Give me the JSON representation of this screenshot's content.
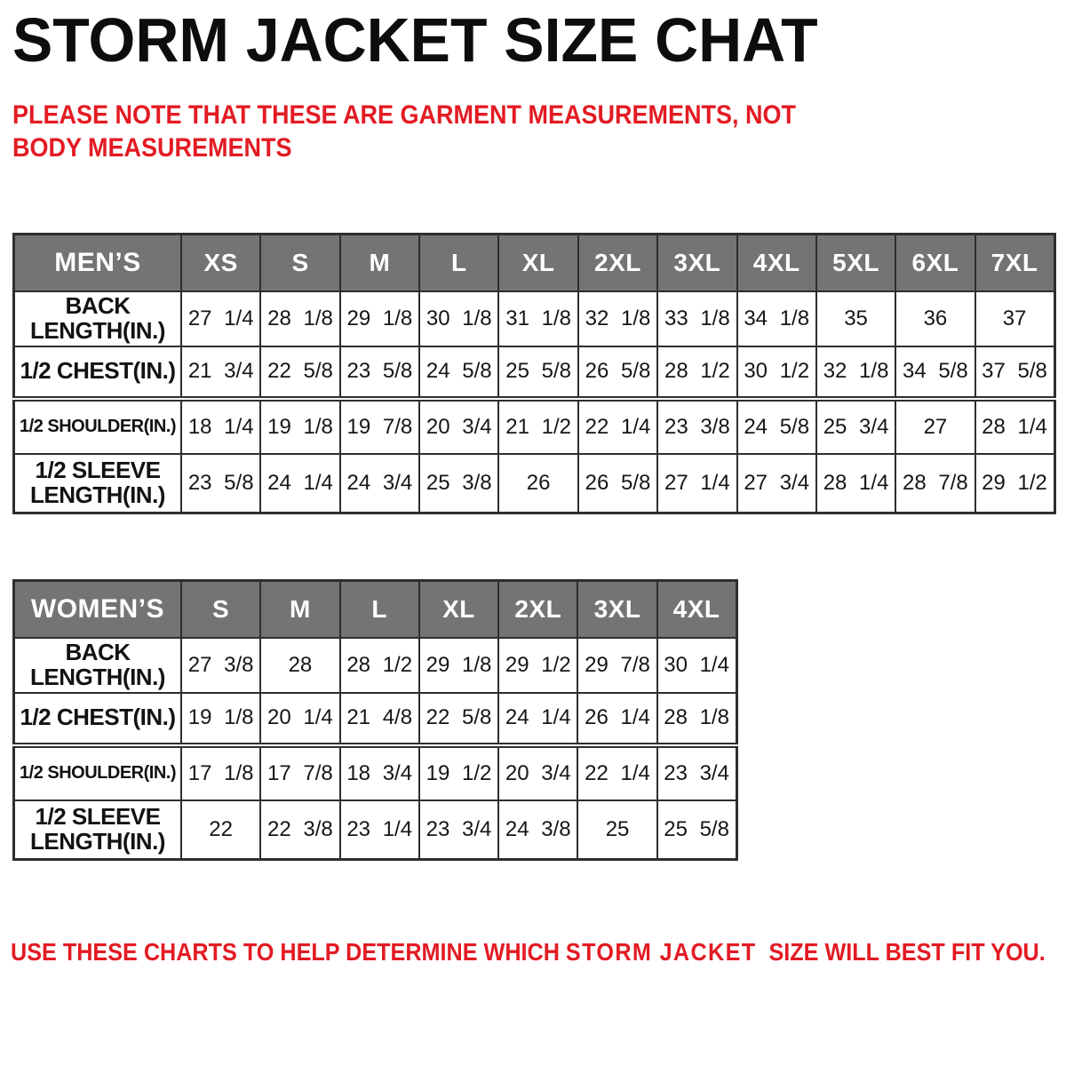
{
  "title": "STORM JACKET SIZE CHAT",
  "note": "PLEASE NOTE THAT THESE ARE GARMENT MEASUREMENTS, NOT BODY MEASUREMENTS",
  "footer": {
    "prefix": "USE THESE CHARTS TO HELP DETERMINE WHICH ",
    "brand": "STORM JACKET",
    "suffix": "  SIZE WILL BEST FIT YOU."
  },
  "colors": {
    "header_bg": "#747474",
    "header_text": "#ffffff",
    "accent_red": "#e31b23",
    "border": "#2e2e2e",
    "title_black": "#0d0d0d"
  },
  "tables": [
    {
      "title": "MEN’S",
      "sizes": [
        "XS",
        "S",
        "M",
        "L",
        "XL",
        "2XL",
        "3XL",
        "4XL",
        "5XL",
        "6XL",
        "7XL"
      ],
      "rows": [
        {
          "label": "BACK LENGTH(IN.)",
          "values": [
            "27 1/4",
            "28 1/8",
            "29 1/8",
            "30 1/8",
            "31 1/8",
            "32 1/8",
            "33 1/8",
            "34 1/8",
            "35",
            "36",
            "37"
          ]
        },
        {
          "label": "1/2 CHEST(IN.)",
          "values": [
            "21 3/4",
            "22 5/8",
            "23 5/8",
            "24 5/8",
            "25 5/8",
            "26 5/8",
            "28 1/2",
            "30 1/2",
            "32 1/8",
            "34 5/8",
            "37 5/8"
          ]
        },
        {
          "label": "1/2 SHOULDER(IN.)",
          "values": [
            "18 1/4",
            "19 1/8",
            "19 7/8",
            "20 3/4",
            "21 1/2",
            "22 1/4",
            "23 3/8",
            "24 5/8",
            "25 3/4",
            "27",
            "28 1/4"
          ]
        },
        {
          "label": "1/2 SLEEVE LENGTH(IN.)",
          "values": [
            "23 5/8",
            "24 1/4",
            "24 3/4",
            "25 3/8",
            "26",
            "26 5/8",
            "27 1/4",
            "27 3/4",
            "28 1/4",
            "28 7/8",
            "29 1/2"
          ]
        }
      ]
    },
    {
      "title": "WOMEN’S",
      "sizes": [
        "S",
        "M",
        "L",
        "XL",
        "2XL",
        "3XL",
        "4XL"
      ],
      "rows": [
        {
          "label": "BACK LENGTH(IN.)",
          "values": [
            "27 3/8",
            "28",
            "28 1/2",
            "29 1/8",
            "29 1/2",
            "29 7/8",
            "30 1/4"
          ]
        },
        {
          "label": "1/2 CHEST(IN.)",
          "values": [
            "19 1/8",
            "20 1/4",
            "21 4/8",
            "22 5/8",
            "24 1/4",
            "26 1/4",
            "28 1/8"
          ]
        },
        {
          "label": "1/2 SHOULDER(IN.)",
          "values": [
            "17 1/8",
            "17 7/8",
            "18 3/4",
            "19 1/2",
            "20 3/4",
            "22 1/4",
            "23 3/4"
          ]
        },
        {
          "label": "1/2 SLEEVE LENGTH(IN.)",
          "values": [
            "22",
            "22 3/8",
            "23 1/4",
            "23 3/4",
            "24 3/8",
            "25",
            "25 5/8"
          ]
        }
      ]
    }
  ]
}
